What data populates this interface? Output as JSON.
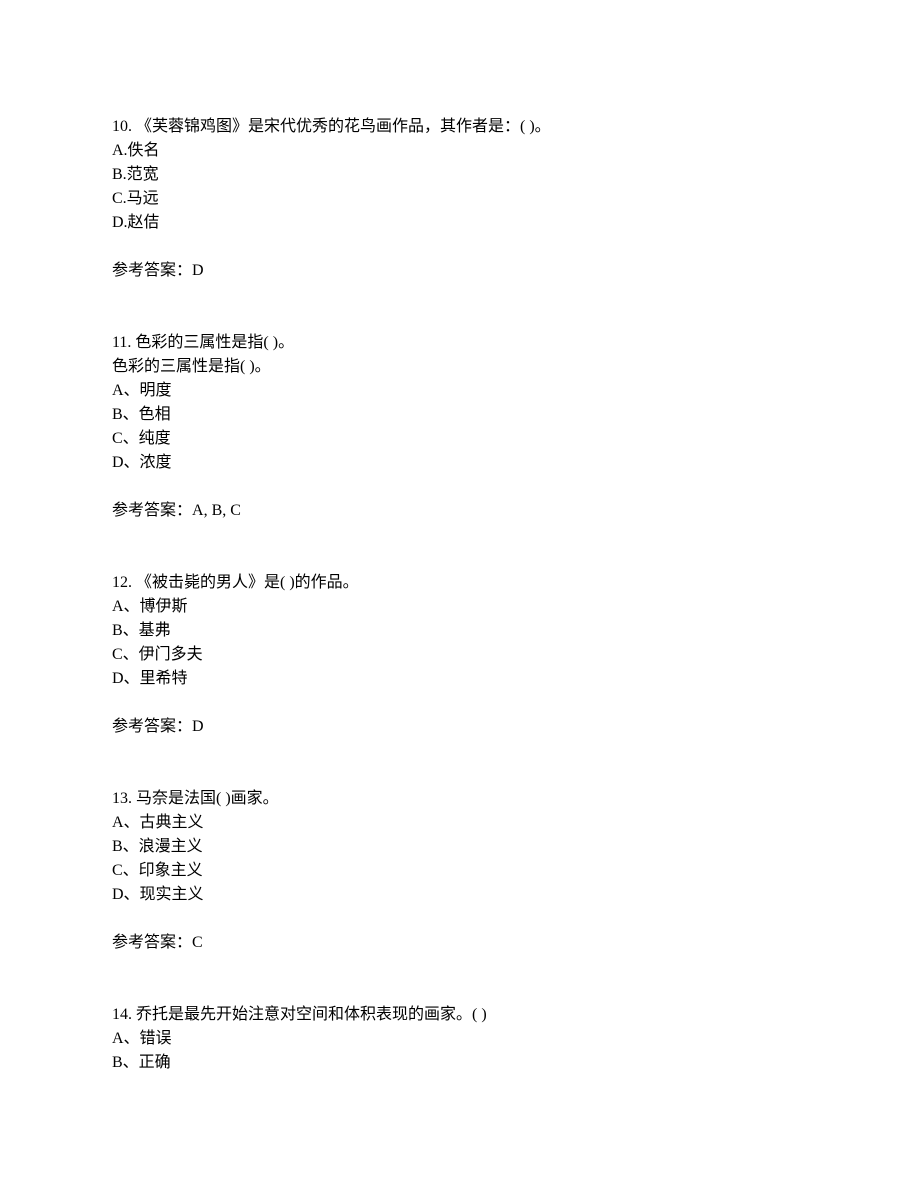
{
  "questions": [
    {
      "number": "10.",
      "stem": " 《芙蓉锦鸡图》是宋代优秀的花鸟画作品，其作者是：(  )。",
      "options": [
        "A.佚名",
        "B.范宽",
        "C.马远",
        "D.赵佶"
      ],
      "answerLabel": "参考答案：",
      "answer": "D"
    },
    {
      "number": "11.",
      "stem": " 色彩的三属性是指(  )。",
      "repeat": "色彩的三属性是指(  )。",
      "options": [
        "A、明度",
        "B、色相",
        "C、纯度",
        "D、浓度"
      ],
      "answerLabel": "参考答案：",
      "answer": "A, B, C"
    },
    {
      "number": "12.",
      "stem": " 《被击毙的男人》是(  )的作品。",
      "options": [
        "A、博伊斯",
        "B、基弗",
        "C、伊门多夫",
        "D、里希特"
      ],
      "answerLabel": "参考答案：",
      "answer": "D"
    },
    {
      "number": "13.",
      "stem": " 马奈是法国(  )画家。",
      "options": [
        "A、古典主义",
        "B、浪漫主义",
        "C、印象主义",
        "D、现实主义"
      ],
      "answerLabel": "参考答案：",
      "answer": "C"
    },
    {
      "number": "14.",
      "stem": " 乔托是最先开始注意对空间和体积表现的画家。(  )",
      "options": [
        "A、错误",
        "B、正确"
      ],
      "answerLabel": "",
      "answer": ""
    }
  ]
}
